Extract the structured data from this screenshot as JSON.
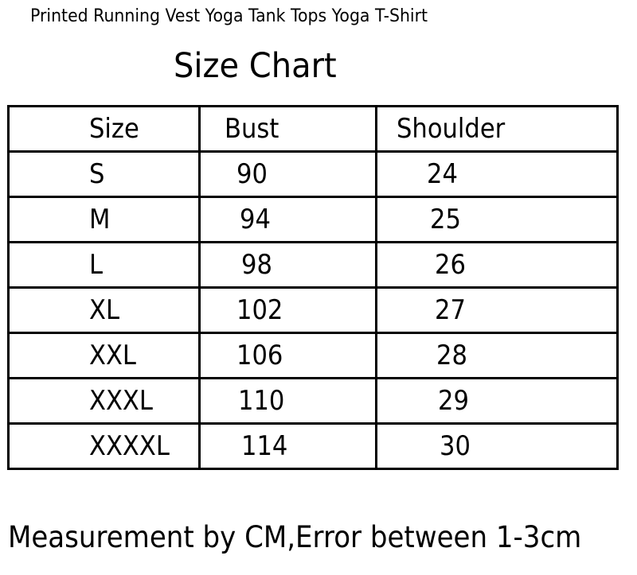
{
  "title": "Printed Running Vest Yoga Tank Tops Yoga T-Shirt",
  "heading": "Size Chart",
  "table": {
    "headers": [
      "Size",
      "Bust",
      "Shoulder"
    ],
    "rows": [
      [
        "S",
        "90",
        "24"
      ],
      [
        "M",
        "94",
        "25"
      ],
      [
        "L",
        "98",
        "26"
      ],
      [
        "XL",
        "102",
        "27"
      ],
      [
        "XXL",
        "106",
        "28"
      ],
      [
        "XXXL",
        "110",
        "29"
      ],
      [
        "XXXXL",
        "114",
        "30"
      ]
    ]
  },
  "footer": "Measurement by CM,Error between 1-3cm"
}
